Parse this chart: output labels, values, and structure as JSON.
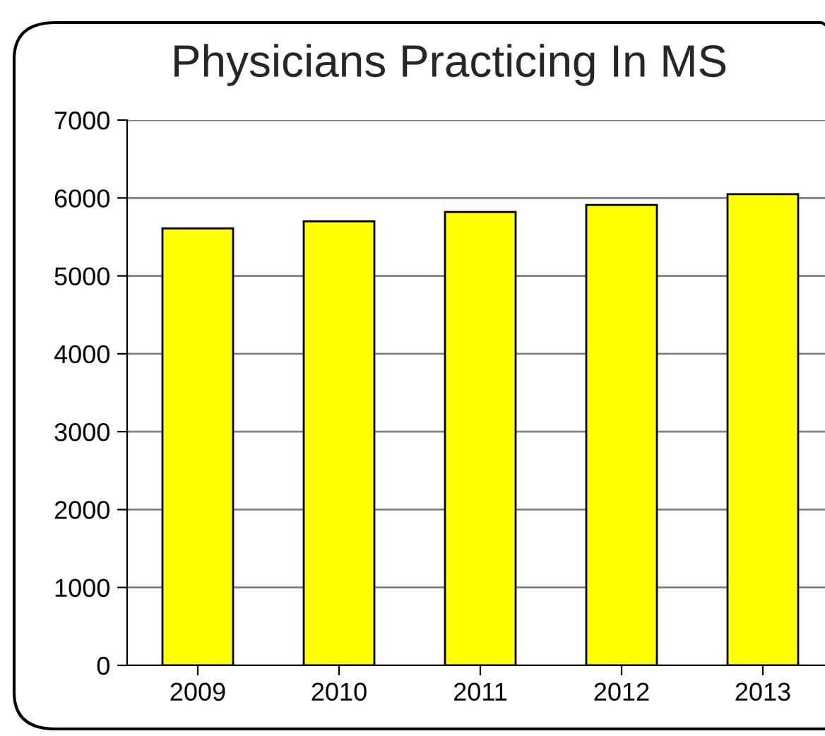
{
  "chart_data": {
    "type": "bar",
    "title": "Physicians Practicing In MS",
    "categories": [
      "2009",
      "2010",
      "2011",
      "2012",
      "2013"
    ],
    "values": [
      5610,
      5700,
      5820,
      5910,
      6050
    ],
    "color": "#ffff00",
    "ylim": [
      0,
      7000
    ],
    "yticks": [
      0,
      1000,
      2000,
      3000,
      4000,
      5000,
      6000,
      7000
    ],
    "grid": "y",
    "legend": false
  }
}
